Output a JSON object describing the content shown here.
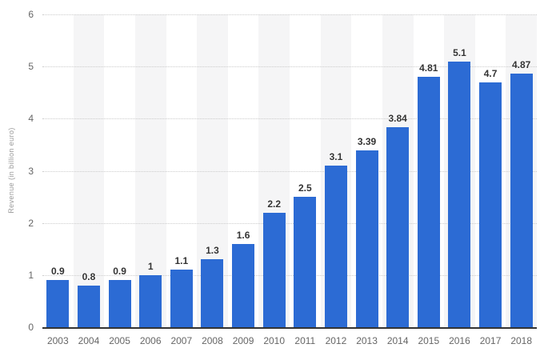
{
  "chart_data": {
    "type": "bar",
    "title": "",
    "xlabel": "",
    "ylabel": "Revenue (in billion euro)",
    "categories": [
      "2003",
      "2004",
      "2005",
      "2006",
      "2007",
      "2008",
      "2009",
      "2010",
      "2011",
      "2012",
      "2013",
      "2014",
      "2015",
      "2016",
      "2017",
      "2018"
    ],
    "values": [
      0.9,
      0.8,
      0.9,
      1,
      1.1,
      1.3,
      1.6,
      2.2,
      2.5,
      3.1,
      3.39,
      3.84,
      4.81,
      5.1,
      4.7,
      4.87
    ],
    "value_labels": [
      "0.9",
      "0.8",
      "0.9",
      "1",
      "1.1",
      "1.3",
      "1.6",
      "2.2",
      "2.5",
      "3.1",
      "3.39",
      "3.84",
      "4.81",
      "5.1",
      "4.7",
      "4.87"
    ],
    "ylim": [
      0,
      6
    ],
    "yticks": [
      0,
      1,
      2,
      3,
      4,
      5,
      6
    ],
    "grid": "horizontal-dotted",
    "alternating_column_bands": true,
    "legend": "none",
    "colors": {
      "bar": "#2c6bd4",
      "value_label": "#333333",
      "axis_label": "#666666",
      "axis_title": "#999999",
      "gridline": "#cccccc",
      "baseline": "#333333",
      "band": "#f5f5f6",
      "background": "#ffffff"
    }
  }
}
